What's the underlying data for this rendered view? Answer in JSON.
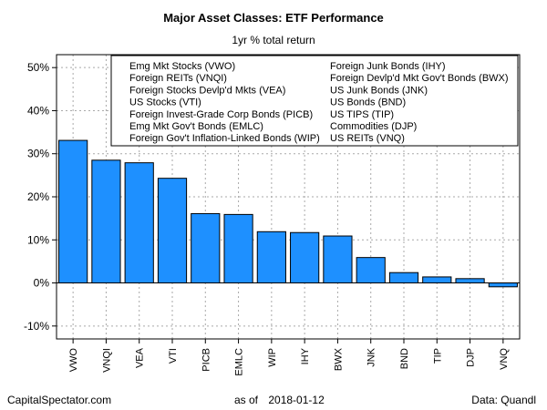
{
  "chart_data": {
    "type": "bar",
    "title": "Major Asset Classes: ETF Performance",
    "subtitle": "1yr % total return",
    "categories": [
      "VWO",
      "VNQI",
      "VEA",
      "VTI",
      "PICB",
      "EMLC",
      "WIP",
      "IHY",
      "BWX",
      "JNK",
      "BND",
      "TIP",
      "DJP",
      "VNQ"
    ],
    "values": [
      33.1,
      28.5,
      27.9,
      24.3,
      16.1,
      15.9,
      11.9,
      11.7,
      10.9,
      5.9,
      2.4,
      1.4,
      1.0,
      -0.9
    ],
    "ylim": [
      -13,
      53
    ],
    "yticks": [
      -10,
      0,
      10,
      20,
      30,
      40,
      50
    ],
    "ytick_labels": [
      "-10%",
      "0%",
      "10%",
      "20%",
      "30%",
      "40%",
      "50%"
    ],
    "bar_color": "#1e90ff",
    "grid": true,
    "legend_position": "top-right",
    "legend_columns": [
      [
        "Emg Mkt Stocks (VWO)",
        "Foreign REITs (VNQI)",
        "Foreign Stocks Devlp'd Mkts (VEA)",
        "US Stocks (VTI)",
        "Foreign Invest-Grade Corp Bonds (PICB)",
        "Emg Mkt Gov't Bonds (EMLC)",
        "Foreign Gov't Inflation-Linked Bonds (WIP)"
      ],
      [
        "Foreign Junk Bonds (IHY)",
        "Foreign Devlp'd Mkt Gov't Bonds (BWX)",
        "US Junk Bonds (JNK)",
        "US Bonds (BND)",
        "US TIPS (TIP)",
        "Commodities (DJP)",
        "US REITs (VNQ)"
      ]
    ]
  },
  "footer": {
    "source_site": "CapitalSpectator.com",
    "as_of_label": "as of",
    "as_of_date": "2018-01-12",
    "data_credit": "Data: Quandl"
  }
}
